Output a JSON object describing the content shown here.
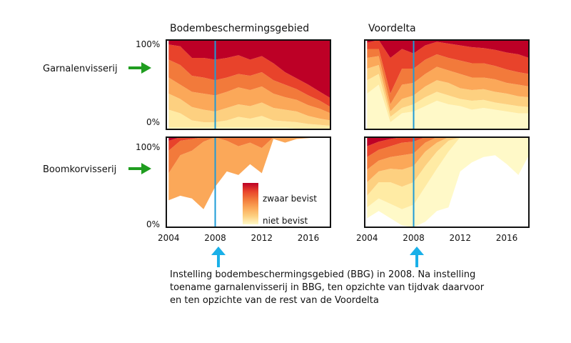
{
  "chart_data": {
    "type": "area",
    "description_lines": [
      "Instelling bodembeschermingsgebied (BBG) in 2008. Na instelling",
      "toename garnalenvisserij in BBG, ten opzichte van tijdvak daarvoor",
      "en ten opzichte van de rest van de Voordelta"
    ],
    "columns": [
      "Bodembeschermingsgebied",
      "Voordelta"
    ],
    "rows": [
      "Garnalenvisserij",
      "Boomkorvisserij"
    ],
    "x_ticks": [
      "2004",
      "2008",
      "2012",
      "2016"
    ],
    "xlim": [
      2003.8,
      2017.9
    ],
    "y_ticks": {
      "top": "100%",
      "bottom": "0%"
    },
    "ylim": [
      0,
      100
    ],
    "vline_year": 2008,
    "legend": {
      "high": "zwaar bevist",
      "low": "niet bevist",
      "placement": "inside-bottom-center"
    },
    "colors": {
      "bands": [
        "#fff9c8",
        "#ffeba4",
        "#fdd080",
        "#fba859",
        "#f27a3b",
        "#e8432b",
        "#bd0026"
      ],
      "vline": "#1e9bd7",
      "arrow_green": "#1f9d1f",
      "arrow_blue": "#1ab0e8"
    },
    "x": [
      2004,
      2005,
      2006,
      2007,
      2008,
      2009,
      2010,
      2011,
      2012,
      2013,
      2014,
      2015,
      2016,
      2017,
      2017.9
    ],
    "panels": [
      {
        "row": "Garnalenvisserij",
        "column": "Bodembeschermingsgebied",
        "cumulative": [
          [
            2,
            2,
            2,
            2,
            2,
            2,
            2,
            2,
            2,
            2,
            2,
            1,
            1,
            1,
            1
          ],
          [
            22,
            18,
            10,
            8,
            8,
            10,
            14,
            12,
            15,
            10,
            9,
            8,
            6,
            5,
            4
          ],
          [
            40,
            34,
            25,
            22,
            20,
            24,
            28,
            26,
            30,
            24,
            22,
            20,
            15,
            12,
            10
          ],
          [
            58,
            50,
            42,
            40,
            38,
            42,
            47,
            44,
            48,
            40,
            36,
            33,
            27,
            23,
            18
          ],
          [
            78,
            72,
            60,
            58,
            55,
            58,
            62,
            60,
            64,
            55,
            50,
            45,
            38,
            32,
            25
          ],
          [
            95,
            93,
            80,
            80,
            78,
            80,
            83,
            78,
            82,
            74,
            64,
            57,
            50,
            42,
            35
          ]
        ]
      },
      {
        "row": "Garnalenvisserij",
        "column": "Voordelta",
        "cumulative": [
          [
            2,
            2,
            2,
            2,
            2,
            2,
            2,
            2,
            2,
            2,
            2,
            2,
            2,
            2,
            2
          ],
          [
            40,
            50,
            8,
            18,
            20,
            26,
            32,
            28,
            26,
            22,
            24,
            22,
            20,
            18,
            18
          ],
          [
            55,
            62,
            14,
            24,
            28,
            36,
            42,
            38,
            34,
            32,
            33,
            30,
            28,
            26,
            25
          ],
          [
            68,
            72,
            20,
            34,
            38,
            48,
            55,
            52,
            46,
            44,
            45,
            42,
            40,
            37,
            36
          ],
          [
            80,
            82,
            28,
            50,
            52,
            62,
            70,
            66,
            62,
            58,
            58,
            56,
            52,
            50,
            48
          ],
          [
            90,
            90,
            40,
            68,
            68,
            78,
            84,
            80,
            77,
            74,
            74,
            71,
            67,
            64,
            62
          ],
          [
            97,
            100,
            80,
            90,
            85,
            94,
            98,
            96,
            94,
            92,
            91,
            89,
            86,
            84,
            80
          ]
        ]
      },
      {
        "row": "Boomkorvisserij",
        "column": "Bodembeschermingsgebied",
        "cumulative": [
          [
            30,
            35,
            32,
            20,
            45,
            62,
            58,
            70,
            60,
            98,
            94,
            98,
            99,
            100,
            100
          ],
          [
            60,
            80,
            85,
            95,
            100,
            96,
            90,
            94,
            88,
            100,
            100,
            100,
            100,
            100,
            100
          ],
          [
            85,
            96,
            98,
            100,
            100,
            100,
            100,
            100,
            100,
            100,
            100,
            100,
            100,
            100,
            100
          ],
          [
            96,
            100,
            100,
            100,
            100,
            100,
            100,
            100,
            100,
            100,
            100,
            100,
            100,
            100,
            100
          ]
        ]
      },
      {
        "row": "Boomkorvisserij",
        "column": "Voordelta",
        "cumulative": [
          [
            10,
            18,
            10,
            2,
            0,
            6,
            18,
            22,
            62,
            72,
            78,
            80,
            70,
            58,
            80
          ],
          [
            22,
            32,
            26,
            20,
            25,
            45,
            65,
            84,
            100,
            100,
            100,
            100,
            100,
            100,
            100
          ],
          [
            35,
            50,
            50,
            45,
            50,
            68,
            84,
            96,
            100,
            100,
            100,
            100,
            100,
            100,
            100
          ],
          [
            50,
            62,
            65,
            64,
            68,
            84,
            94,
            100,
            100,
            100,
            100,
            100,
            100,
            100,
            100
          ],
          [
            64,
            74,
            78,
            80,
            82,
            94,
            100,
            100,
            100,
            100,
            100,
            100,
            100,
            100,
            100
          ],
          [
            78,
            86,
            90,
            94,
            95,
            100,
            100,
            100,
            100,
            100,
            100,
            100,
            100,
            100,
            100
          ],
          [
            90,
            95,
            98,
            100,
            100,
            100,
            100,
            100,
            100,
            100,
            100,
            100,
            100,
            100,
            100
          ]
        ]
      }
    ]
  }
}
